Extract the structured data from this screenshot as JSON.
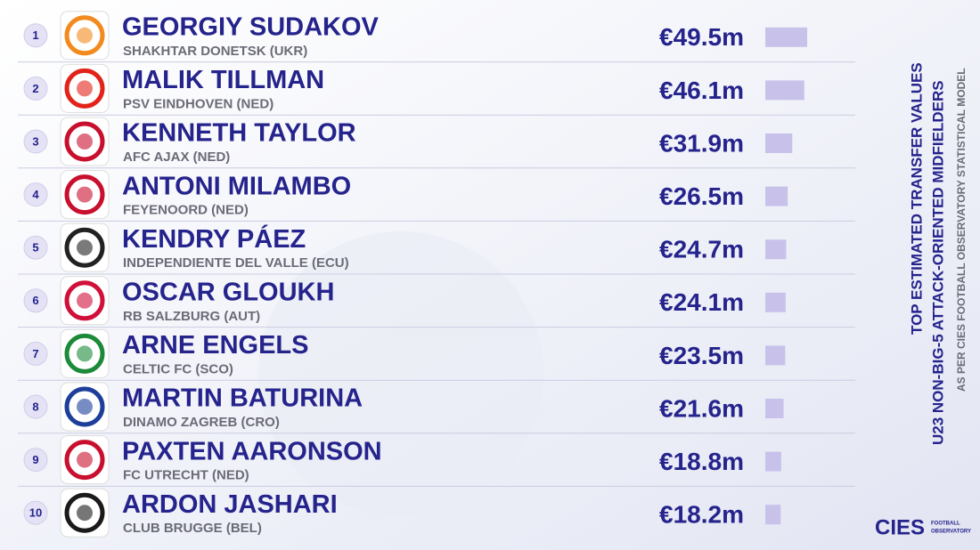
{
  "chart_data": {
    "type": "bar",
    "title": [
      "TOP ESTIMATED TRANSFER VALUES",
      "U23 NON-BIG-5 ATTACK-ORIENTED MIDFIELDERS"
    ],
    "subtitle": "AS PER CIES FOOTBALL OBSERVATORY STATISTICAL MODEL",
    "ranks": [
      1,
      2,
      3,
      4,
      5,
      6,
      7,
      8,
      9,
      10
    ],
    "categories": [
      "GEORGIY SUDAKOV",
      "MALIK TILLMAN",
      "KENNETH TAYLOR",
      "ANTONI MILAMBO",
      "KENDRY PÁEZ",
      "OSCAR GLOUKH",
      "ARNE ENGELS",
      "MARTIN BATURINA",
      "PAXTEN AARONSON",
      "ARDON JASHARI"
    ],
    "clubs": [
      "SHAKHTAR DONETSK (UKR)",
      "PSV EINDHOVEN (NED)",
      "AFC AJAX (NED)",
      "FEYENOORD (NED)",
      "INDEPENDIENTE DEL VALLE (ECU)",
      "RB SALZBURG (AUT)",
      "CELTIC FC (SCO)",
      "DINAMO ZAGREB (CRO)",
      "FC UTRECHT (NED)",
      "CLUB BRUGGE (BEL)"
    ],
    "values": [
      49.5,
      46.1,
      31.9,
      26.5,
      24.7,
      24.1,
      23.5,
      21.6,
      18.8,
      18.2
    ],
    "value_labels": [
      "€49.5m",
      "€46.1m",
      "€31.9m",
      "€26.5m",
      "€24.7m",
      "€24.1m",
      "€23.5m",
      "€21.6m",
      "€18.8m",
      "€18.2m"
    ],
    "color": "#c8c2ea"
  },
  "brand": {
    "name": "CIES",
    "tagline": [
      "FOOTBALL",
      "OBSERVATORY"
    ]
  }
}
